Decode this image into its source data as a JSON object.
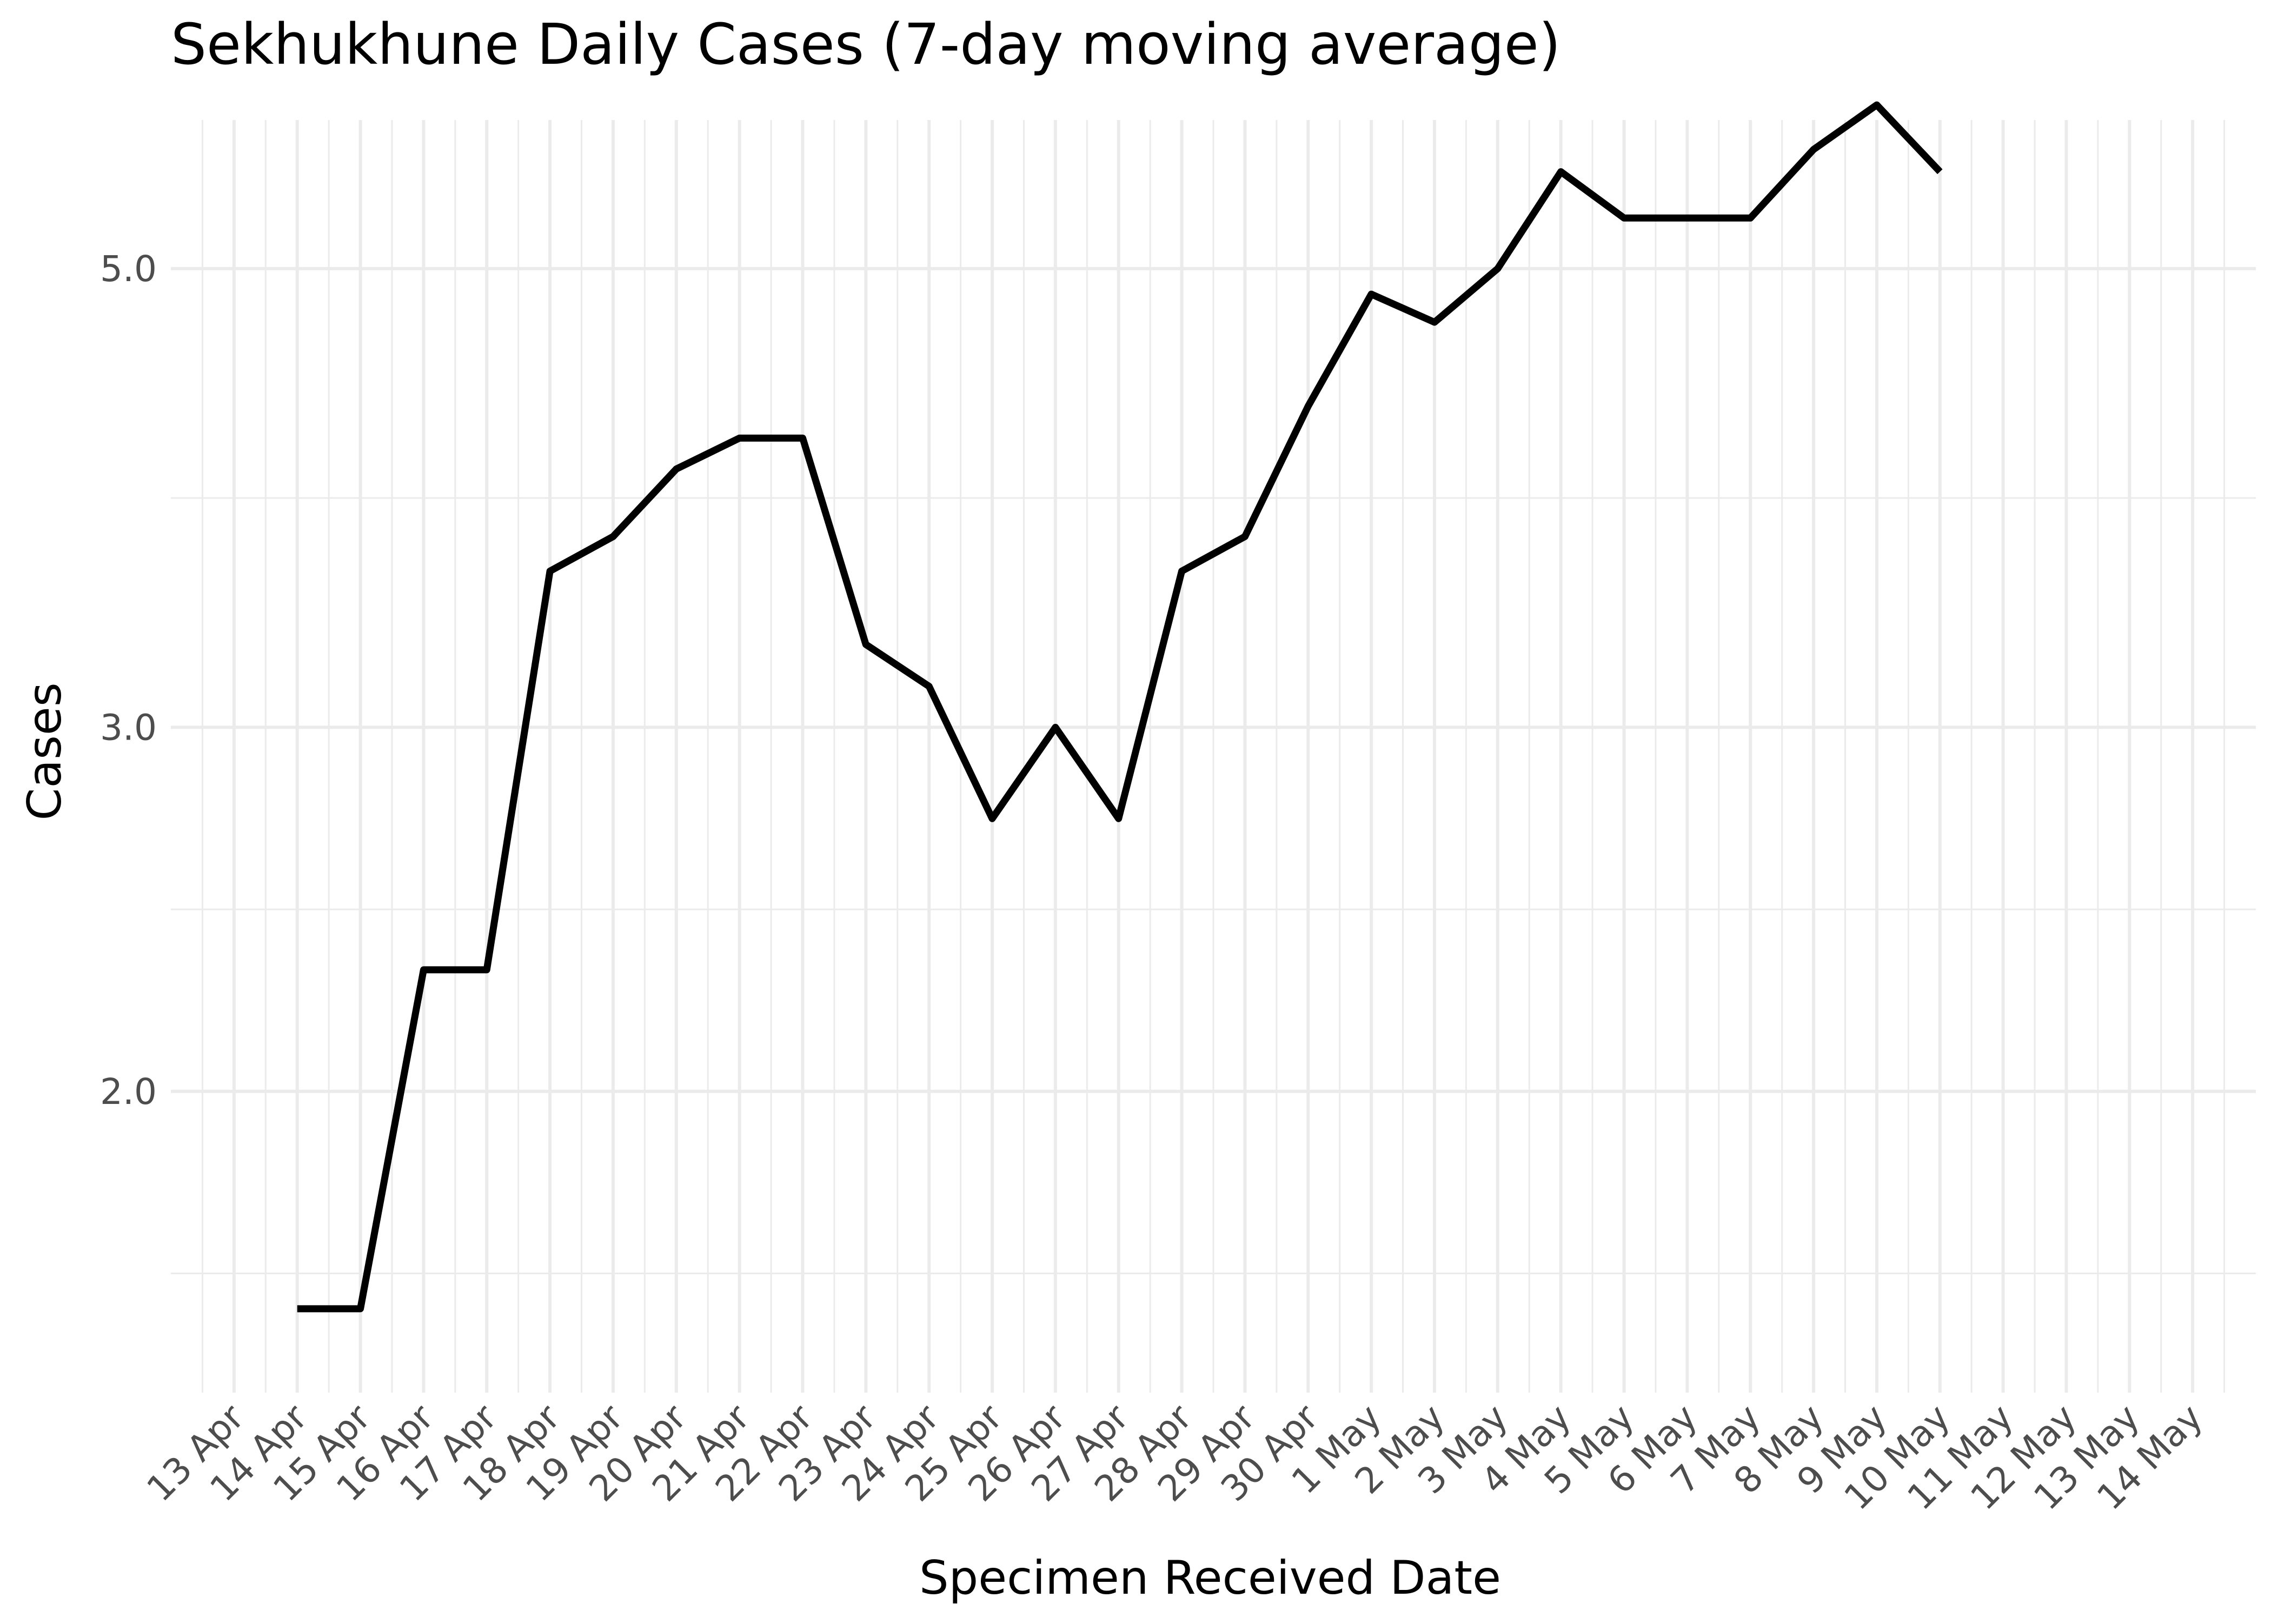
{
  "chart_data": {
    "type": "line",
    "title": "Sekhukhune Daily Cases (7-day moving average)",
    "xlabel": "Specimen Received Date",
    "ylabel": "Cases",
    "y_scale": "log",
    "grid": true,
    "legend": "none",
    "line_color": "#000000",
    "xlim": [
      "2020-04-12",
      "2020-05-15"
    ],
    "ylim": [
      1.43,
      5.9
    ],
    "x_ticks": [
      "13 Apr",
      "14 Apr",
      "15 Apr",
      "16 Apr",
      "17 Apr",
      "18 Apr",
      "19 Apr",
      "20 Apr",
      "21 Apr",
      "22 Apr",
      "23 Apr",
      "24 Apr",
      "25 Apr",
      "26 Apr",
      "27 Apr",
      "28 Apr",
      "29 Apr",
      "30 Apr",
      "1 May",
      "2 May",
      "3 May",
      "4 May",
      "5 May",
      "6 May",
      "7 May",
      "8 May",
      "9 May",
      "10 May",
      "11 May",
      "12 May",
      "13 May",
      "14 May"
    ],
    "y_ticks": [
      {
        "value": 2.0,
        "label": "2.0"
      },
      {
        "value": 3.0,
        "label": "3.0"
      },
      {
        "value": 5.0,
        "label": "5.0"
      }
    ],
    "series": [
      {
        "x": [
          "2020-04-14",
          "2020-04-15",
          "2020-04-16",
          "2020-04-17",
          "2020-04-18",
          "2020-04-19",
          "2020-04-20",
          "2020-04-21",
          "2020-04-22",
          "2020-04-23",
          "2020-04-24",
          "2020-04-25",
          "2020-04-26",
          "2020-04-27",
          "2020-04-28",
          "2020-04-29",
          "2020-04-30",
          "2020-05-01",
          "2020-05-02",
          "2020-05-03",
          "2020-05-04",
          "2020-05-05",
          "2020-05-06",
          "2020-05-07",
          "2020-05-08",
          "2020-05-09",
          "2020-05-10"
        ],
        "y": [
          1.57,
          1.57,
          2.29,
          2.29,
          3.57,
          3.71,
          4.0,
          4.14,
          4.14,
          3.29,
          3.14,
          2.71,
          3.0,
          2.71,
          3.57,
          3.71,
          4.29,
          4.86,
          4.71,
          5.0,
          5.57,
          5.29,
          5.29,
          5.29,
          5.71,
          6.0,
          5.57
        ]
      }
    ]
  }
}
